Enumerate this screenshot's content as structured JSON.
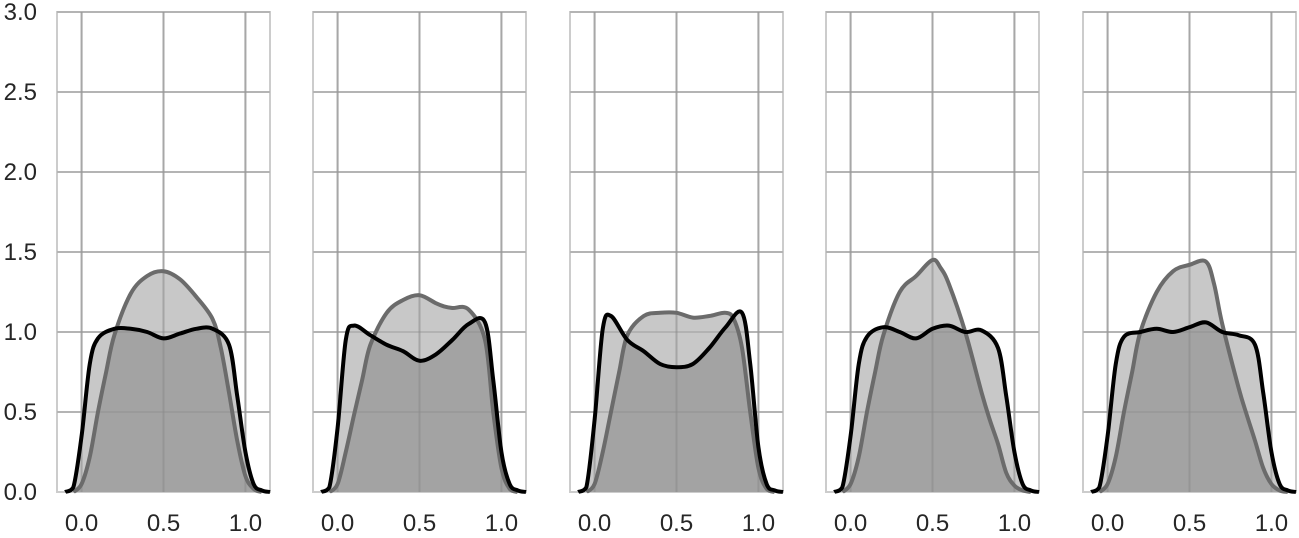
{
  "chart_data": {
    "type": "area",
    "layout": "5 small-multiple panels sharing the y-axis",
    "title": "",
    "xlabel": "",
    "ylabel": "",
    "xlim": [
      -0.15,
      1.15
    ],
    "ylim": [
      0,
      3.0
    ],
    "x_ticks": [
      0.0,
      0.5,
      1.0
    ],
    "x_tick_labels": [
      "0.0",
      "0.5",
      "1.0"
    ],
    "y_ticks": [
      0.0,
      0.5,
      1.0,
      1.5,
      2.0,
      2.5,
      3.0
    ],
    "y_tick_labels": [
      "0.0",
      "0.5",
      "1.0",
      "1.5",
      "2.0",
      "2.5",
      "3.0"
    ],
    "grid": true,
    "legend": "none",
    "colors": {
      "series_a_line": "#6b6b6b",
      "series_a_fill": "#c8c8c8",
      "series_b_line": "#000000",
      "overlap_fill": "#a3a3a3",
      "grid": "#cccccc"
    },
    "panels": [
      {
        "series": [
          {
            "x": [
              -0.05,
              0.0,
              0.05,
              0.1,
              0.15,
              0.2,
              0.3,
              0.4,
              0.5,
              0.6,
              0.7,
              0.8,
              0.85,
              0.9,
              0.95,
              1.0,
              1.05,
              1.1
            ],
            "values": [
              0.0,
              0.05,
              0.22,
              0.5,
              0.75,
              0.98,
              1.24,
              1.35,
              1.38,
              1.33,
              1.22,
              1.08,
              0.9,
              0.62,
              0.32,
              0.1,
              0.02,
              0.0
            ]
          },
          {
            "x": [
              -0.1,
              -0.05,
              0.0,
              0.05,
              0.1,
              0.2,
              0.3,
              0.4,
              0.5,
              0.6,
              0.7,
              0.8,
              0.9,
              0.95,
              1.0,
              1.05,
              1.1,
              1.15
            ],
            "values": [
              0.0,
              0.03,
              0.35,
              0.8,
              0.96,
              1.02,
              1.02,
              1.0,
              0.96,
              0.99,
              1.02,
              1.02,
              0.92,
              0.6,
              0.25,
              0.05,
              0.01,
              0.0
            ]
          }
        ]
      },
      {
        "series": [
          {
            "x": [
              -0.05,
              0.0,
              0.05,
              0.1,
              0.15,
              0.2,
              0.3,
              0.4,
              0.5,
              0.6,
              0.65,
              0.7,
              0.8,
              0.9,
              0.95,
              1.0,
              1.05,
              1.1
            ],
            "values": [
              0.0,
              0.05,
              0.25,
              0.48,
              0.7,
              0.92,
              1.12,
              1.2,
              1.23,
              1.18,
              1.16,
              1.15,
              1.14,
              0.95,
              0.5,
              0.15,
              0.02,
              0.0
            ]
          },
          {
            "x": [
              -0.1,
              -0.05,
              0.0,
              0.05,
              0.1,
              0.2,
              0.3,
              0.4,
              0.5,
              0.6,
              0.7,
              0.8,
              0.9,
              0.95,
              1.0,
              1.05,
              1.1,
              1.15
            ],
            "values": [
              0.0,
              0.03,
              0.4,
              0.95,
              1.04,
              0.98,
              0.92,
              0.88,
              0.82,
              0.86,
              0.95,
              1.05,
              1.06,
              0.7,
              0.25,
              0.05,
              0.01,
              0.0
            ]
          }
        ]
      },
      {
        "series": [
          {
            "x": [
              -0.05,
              0.0,
              0.05,
              0.1,
              0.15,
              0.2,
              0.3,
              0.4,
              0.5,
              0.6,
              0.7,
              0.8,
              0.85,
              0.9,
              0.95,
              1.0,
              1.05,
              1.1
            ],
            "values": [
              0.0,
              0.05,
              0.25,
              0.5,
              0.75,
              0.98,
              1.1,
              1.12,
              1.12,
              1.09,
              1.1,
              1.12,
              1.08,
              0.9,
              0.5,
              0.15,
              0.02,
              0.0
            ]
          },
          {
            "x": [
              -0.1,
              -0.05,
              0.0,
              0.05,
              0.1,
              0.2,
              0.3,
              0.4,
              0.5,
              0.6,
              0.7,
              0.8,
              0.9,
              0.95,
              1.0,
              1.05,
              1.1,
              1.15
            ],
            "values": [
              0.0,
              0.03,
              0.45,
              1.02,
              1.1,
              0.95,
              0.88,
              0.8,
              0.78,
              0.8,
              0.9,
              1.03,
              1.12,
              0.8,
              0.28,
              0.05,
              0.01,
              0.0
            ]
          }
        ]
      },
      {
        "series": [
          {
            "x": [
              -0.05,
              0.0,
              0.05,
              0.1,
              0.15,
              0.2,
              0.3,
              0.4,
              0.5,
              0.55,
              0.6,
              0.7,
              0.8,
              0.85,
              0.9,
              0.95,
              1.0,
              1.05,
              1.1
            ],
            "values": [
              0.0,
              0.05,
              0.22,
              0.5,
              0.75,
              0.98,
              1.25,
              1.35,
              1.45,
              1.4,
              1.3,
              1.0,
              0.62,
              0.45,
              0.3,
              0.12,
              0.04,
              0.01,
              0.0
            ]
          },
          {
            "x": [
              -0.1,
              -0.05,
              0.0,
              0.05,
              0.1,
              0.2,
              0.3,
              0.4,
              0.5,
              0.6,
              0.7,
              0.8,
              0.9,
              0.95,
              1.0,
              1.05,
              1.1,
              1.15
            ],
            "values": [
              0.0,
              0.03,
              0.35,
              0.8,
              0.97,
              1.03,
              1.0,
              0.96,
              1.02,
              1.04,
              1.0,
              1.01,
              0.9,
              0.6,
              0.25,
              0.05,
              0.01,
              0.0
            ]
          }
        ]
      },
      {
        "series": [
          {
            "x": [
              -0.05,
              0.0,
              0.05,
              0.1,
              0.15,
              0.2,
              0.3,
              0.4,
              0.5,
              0.6,
              0.65,
              0.7,
              0.8,
              0.85,
              0.9,
              0.95,
              1.0,
              1.05,
              1.1
            ],
            "values": [
              0.0,
              0.05,
              0.22,
              0.5,
              0.75,
              1.0,
              1.25,
              1.38,
              1.42,
              1.44,
              1.3,
              1.05,
              0.65,
              0.48,
              0.32,
              0.15,
              0.05,
              0.01,
              0.0
            ]
          },
          {
            "x": [
              -0.1,
              -0.05,
              0.0,
              0.05,
              0.1,
              0.2,
              0.3,
              0.4,
              0.5,
              0.6,
              0.7,
              0.8,
              0.9,
              0.95,
              1.0,
              1.05,
              1.1,
              1.15
            ],
            "values": [
              0.0,
              0.03,
              0.35,
              0.8,
              0.97,
              1.0,
              1.02,
              1.0,
              1.03,
              1.06,
              1.0,
              0.98,
              0.92,
              0.62,
              0.25,
              0.05,
              0.01,
              0.0
            ]
          }
        ]
      }
    ]
  }
}
